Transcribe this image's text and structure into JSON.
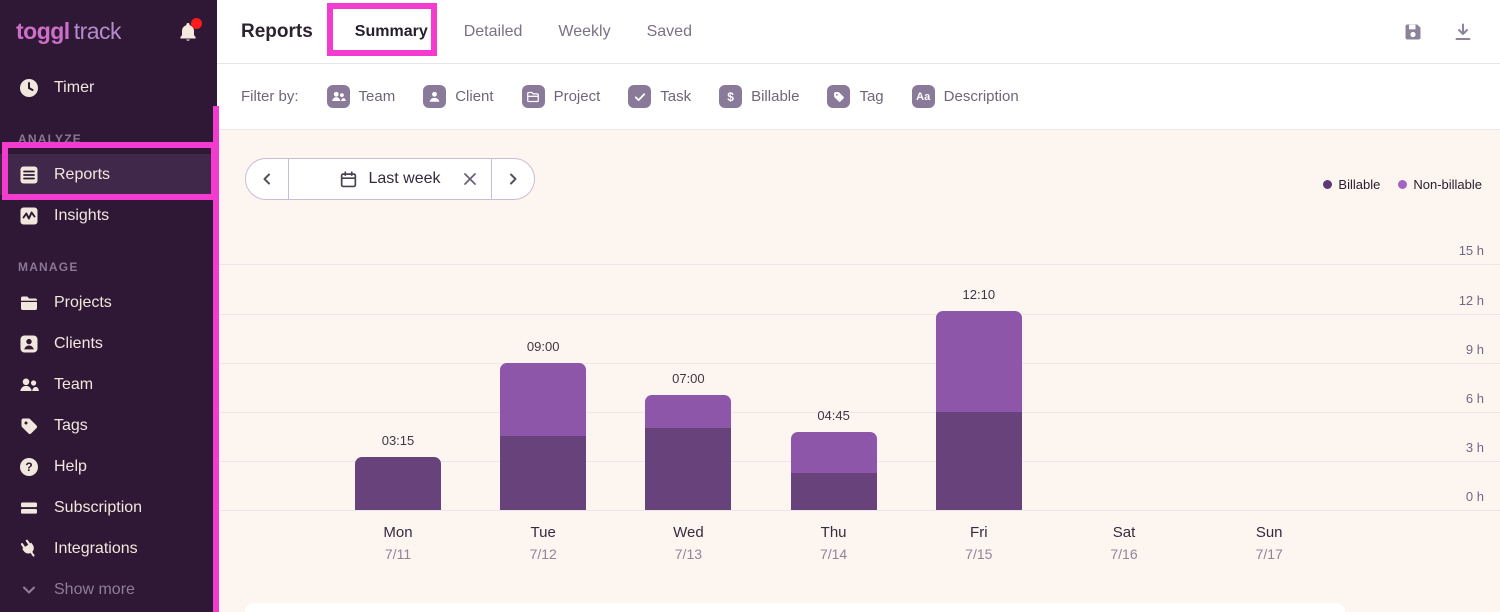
{
  "sidebar": {
    "logo": {
      "bold": "toggl",
      "light": "track"
    },
    "timer_label": "Timer",
    "sections": [
      {
        "label": "ANALYZE",
        "items": [
          {
            "label": "Reports"
          },
          {
            "label": "Insights"
          }
        ]
      },
      {
        "label": "MANAGE",
        "items": [
          {
            "label": "Projects"
          },
          {
            "label": "Clients"
          },
          {
            "label": "Team"
          },
          {
            "label": "Tags"
          },
          {
            "label": "Help"
          },
          {
            "label": "Subscription"
          },
          {
            "label": "Integrations"
          }
        ]
      }
    ],
    "show_more_label": "Show more"
  },
  "header": {
    "title": "Reports",
    "tabs": [
      {
        "label": "Summary",
        "active": true
      },
      {
        "label": "Detailed",
        "active": false
      },
      {
        "label": "Weekly",
        "active": false
      },
      {
        "label": "Saved",
        "active": false
      }
    ]
  },
  "filter_bar": {
    "label": "Filter by:",
    "filters": [
      {
        "label": "Team"
      },
      {
        "label": "Client"
      },
      {
        "label": "Project"
      },
      {
        "label": "Task"
      },
      {
        "label": "Billable"
      },
      {
        "label": "Tag"
      },
      {
        "label": "Description"
      }
    ],
    "billable_glyph": "$",
    "description_glyph": "Aa"
  },
  "date_nav": {
    "value": "Last week"
  },
  "chart_data": {
    "type": "bar",
    "stacked": true,
    "title": "",
    "categories": [
      "Mon",
      "Tue",
      "Wed",
      "Thu",
      "Fri",
      "Sat",
      "Sun"
    ],
    "dates": [
      "7/11",
      "7/12",
      "7/13",
      "7/14",
      "7/15",
      "7/16",
      "7/17"
    ],
    "series": [
      {
        "name": "Billable",
        "color": "#68427b",
        "values": [
          3.25,
          4.5,
          5.0,
          2.25,
          6.0,
          0,
          0
        ]
      },
      {
        "name": "Non-billable",
        "color": "#8d56a8",
        "values": [
          0,
          4.5,
          2.0,
          2.5,
          6.17,
          0,
          0
        ]
      }
    ],
    "totals_labels": [
      "03:15",
      "09:00",
      "07:00",
      "04:45",
      "12:10",
      "",
      ""
    ],
    "yticks": [
      {
        "v": 0,
        "label": "0 h"
      },
      {
        "v": 3,
        "label": "3 h"
      },
      {
        "v": 6,
        "label": "6 h"
      },
      {
        "v": 9,
        "label": "9 h"
      },
      {
        "v": 12,
        "label": "12 h"
      },
      {
        "v": 15,
        "label": "15 h"
      }
    ],
    "ylim": [
      0,
      15
    ],
    "grid": true,
    "legend_position": "top-right",
    "legend": [
      {
        "label": "Billable",
        "color": "#5d3a76"
      },
      {
        "label": "Non-billable",
        "color": "#a263c2"
      }
    ]
  },
  "colors": {
    "annotation_pink": "#f43bd0",
    "sidebar_bg": "#2e1836",
    "content_bg": "#fcf5f0",
    "billable": "#68427b",
    "non_billable": "#8d56a8"
  }
}
